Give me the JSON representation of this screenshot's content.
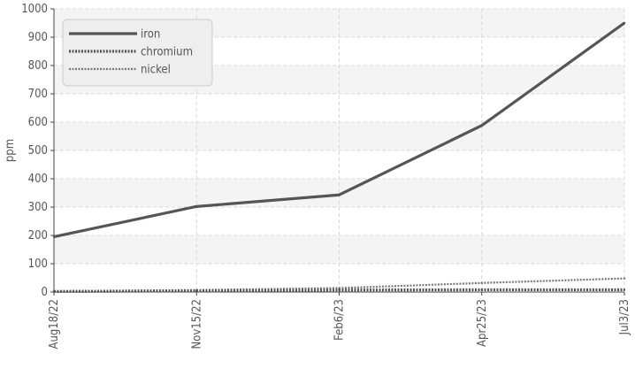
{
  "chart_data": {
    "type": "line",
    "title": "",
    "xlabel": "",
    "ylabel": "ppm",
    "ylim": [
      0,
      1000
    ],
    "yticks": [
      0,
      100,
      200,
      300,
      400,
      500,
      600,
      700,
      800,
      900,
      1000
    ],
    "x": [
      "Aug18/22",
      "Nov15/22",
      "Feb6/23",
      "Apr25/23",
      "Jul3/23"
    ],
    "series": [
      {
        "name": "iron",
        "values": [
          195,
          302,
          343,
          588,
          950
        ]
      },
      {
        "name": "chromium",
        "values": [
          2,
          4,
          7,
          8,
          8
        ]
      },
      {
        "name": "nickel",
        "values": [
          3,
          7,
          14,
          32,
          48
        ]
      }
    ],
    "legend_position": "top-left",
    "grid": true,
    "colors": {
      "iron": "#555555",
      "chromium": "#555555",
      "nickel": "#777777",
      "band": "#f4f4f4",
      "grid": "#d8d8d8",
      "axis": "#444444"
    }
  }
}
